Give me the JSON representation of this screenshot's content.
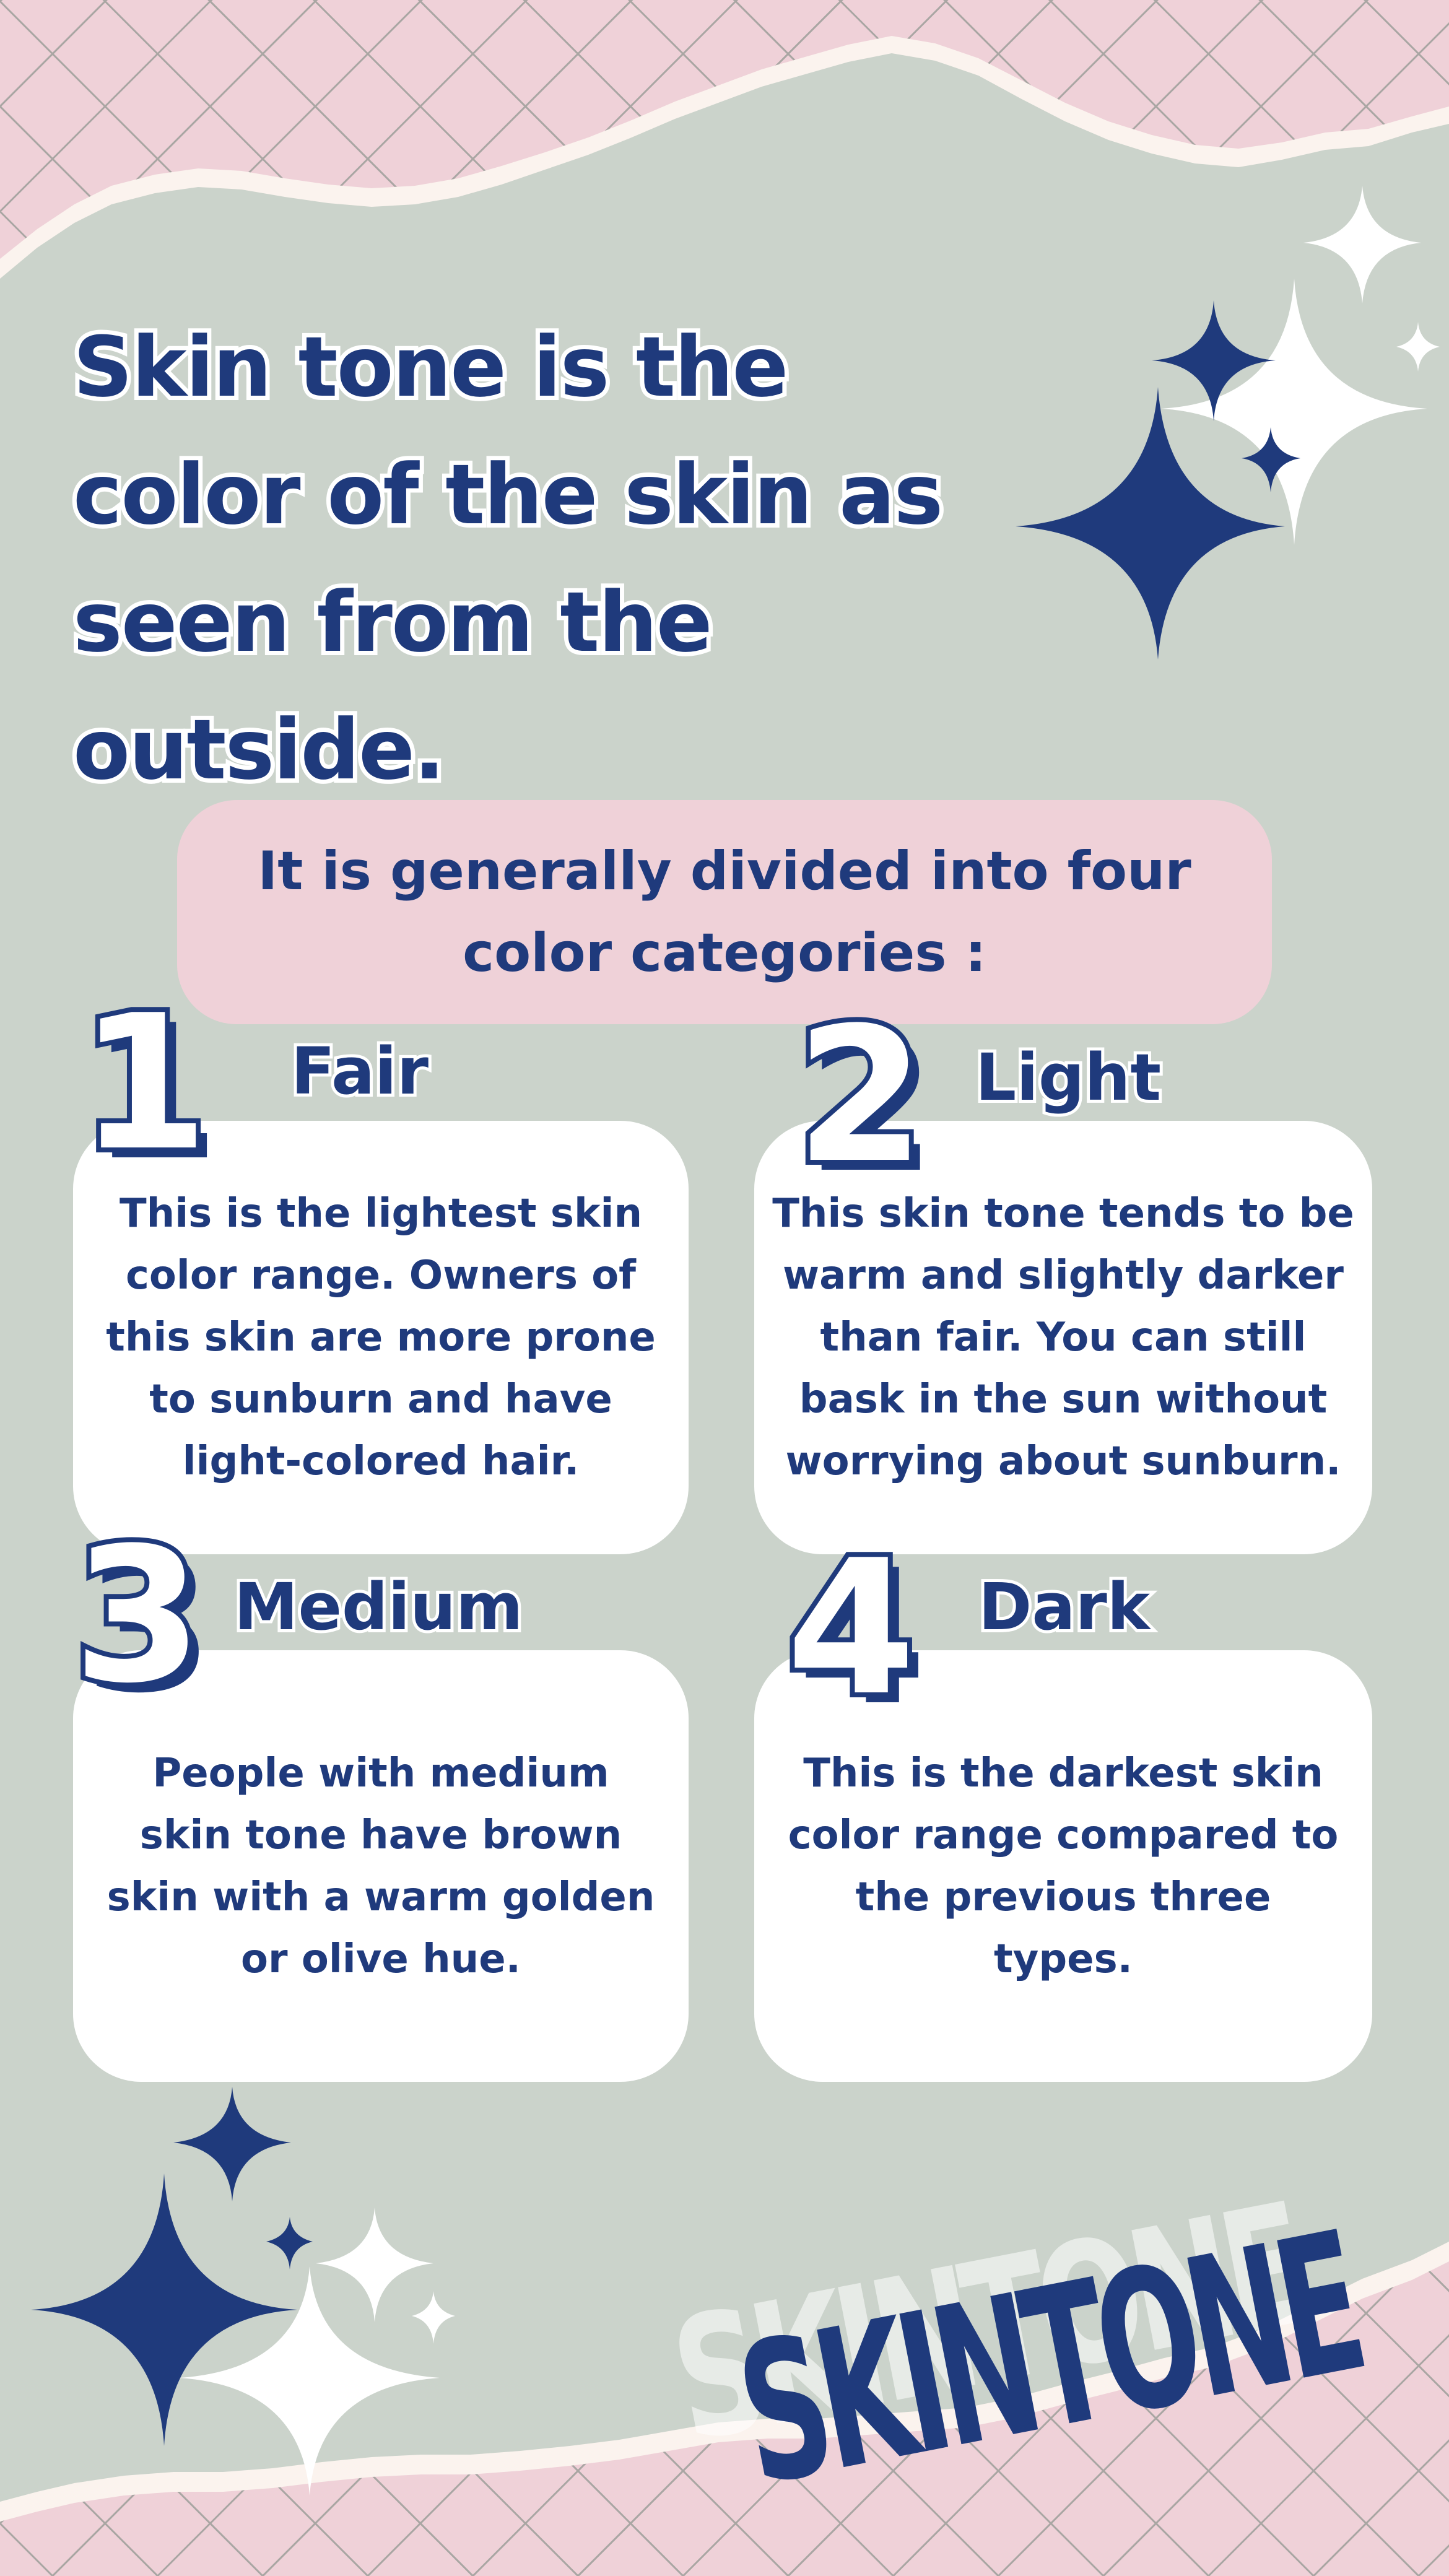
{
  "headline": "Skin tone is the color of the skin as seen from the outside.",
  "subtitle": "It is generally divided into four color categories :",
  "categories": [
    {
      "number": "1",
      "name": "Fair",
      "description": "This is the lightest skin color range. Owners of this skin are more prone to sunburn and have light-colored hair."
    },
    {
      "number": "2",
      "name": "Light",
      "description": "This skin tone tends to be warm and slightly darker than fair. You can still bask in the sun without worrying about sunburn."
    },
    {
      "number": "3",
      "name": "Medium",
      "description": "People with medium skin tone have brown skin with a warm golden or olive hue."
    },
    {
      "number": "4",
      "name": "Dark",
      "description": "This is the darkest skin color range compared to the previous three types."
    }
  ],
  "brand": {
    "wordmark": "SKINTONE"
  },
  "colors": {
    "navy": "#1f3a7c",
    "pink": "#efd1d8",
    "sage": "#cbd3cb",
    "white": "#ffffff"
  },
  "decorations": [
    "sparkle-icon"
  ]
}
